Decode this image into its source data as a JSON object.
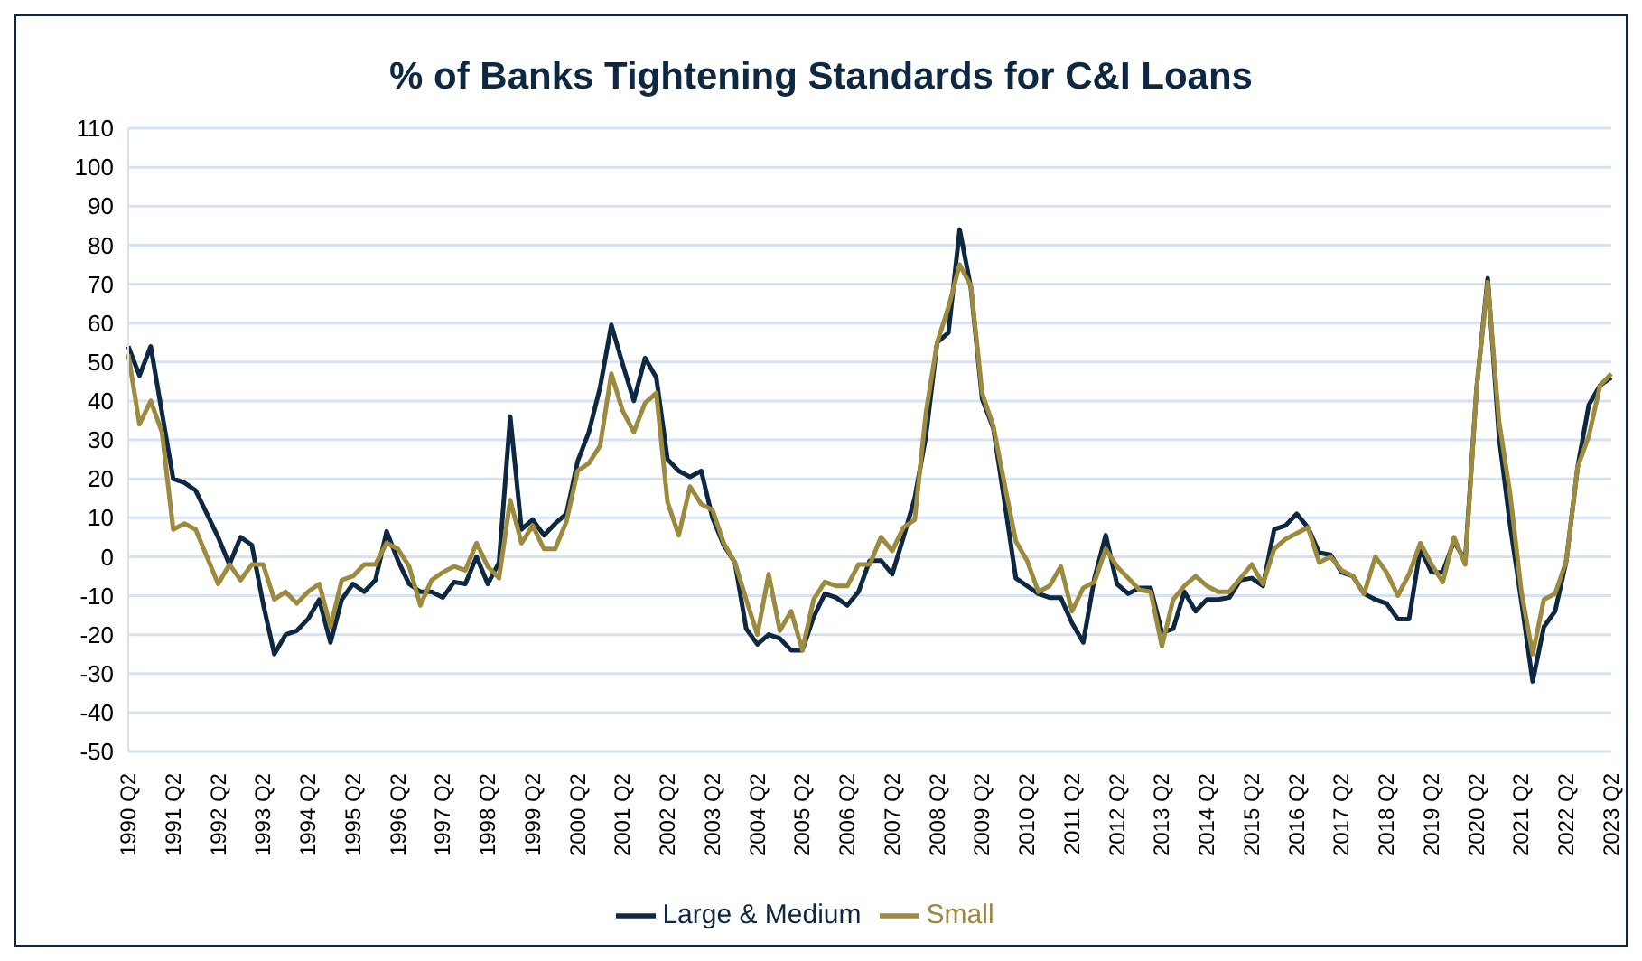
{
  "chart_data": {
    "type": "line",
    "title": "% of Banks Tightening Standards for C&I Loans",
    "categories": [
      "1990 Q2",
      null,
      null,
      null,
      "1991 Q2",
      null,
      null,
      null,
      "1992 Q2",
      null,
      null,
      null,
      "1993 Q2",
      null,
      null,
      null,
      "1994 Q2",
      null,
      null,
      null,
      "1995 Q2",
      null,
      null,
      null,
      "1996 Q2",
      null,
      null,
      null,
      "1997 Q2",
      null,
      null,
      null,
      "1998 Q2",
      null,
      null,
      null,
      "1999 Q2",
      null,
      null,
      null,
      "2000 Q2",
      null,
      null,
      null,
      "2001 Q2",
      null,
      null,
      null,
      "2002 Q2",
      null,
      null,
      null,
      "2003 Q2",
      null,
      null,
      null,
      "2004 Q2",
      null,
      null,
      null,
      "2005 Q2",
      null,
      null,
      null,
      "2006 Q2",
      null,
      null,
      null,
      "2007 Q2",
      null,
      null,
      null,
      "2008 Q2",
      null,
      null,
      null,
      "2009 Q2",
      null,
      null,
      null,
      "2010 Q2",
      null,
      null,
      null,
      "2011 Q2",
      null,
      null,
      null,
      "2012 Q2",
      null,
      null,
      null,
      "2013 Q2",
      null,
      null,
      null,
      "2014 Q2",
      null,
      null,
      null,
      "2015 Q2",
      null,
      null,
      null,
      "2016 Q2",
      null,
      null,
      null,
      "2017 Q2",
      null,
      null,
      null,
      "2018 Q2",
      null,
      null,
      null,
      "2019 Q2",
      null,
      null,
      null,
      "2020 Q2",
      null,
      null,
      null,
      "2021 Q2",
      null,
      null,
      null,
      "2022 Q2",
      null,
      null,
      null,
      "2023 Q2"
    ],
    "series": [
      {
        "name": "Large & Medium",
        "color": "#0e2841",
        "values": [
          54,
          46.5,
          54,
          37,
          20,
          19,
          17,
          11,
          5,
          -2,
          5,
          3,
          -12,
          -25,
          -20,
          -19,
          -16,
          -11,
          -22,
          -11,
          -7,
          -9,
          -6,
          6.5,
          -1,
          -7,
          -9,
          -9,
          -10.5,
          -6.5,
          -7,
          0,
          -7,
          -1.5,
          36,
          7,
          9.5,
          5.5,
          8.5,
          11,
          24.5,
          32,
          43.5,
          59.5,
          49.5,
          40,
          51,
          46,
          25,
          22,
          20.5,
          22,
          10,
          3,
          -1.5,
          -18.5,
          -22.5,
          -20,
          -21,
          -24,
          -24,
          -15.5,
          -9.5,
          -10.5,
          -12.5,
          -9,
          -1,
          -1,
          -4.5,
          5,
          15,
          31,
          55,
          57.5,
          84,
          69,
          40.5,
          33,
          14,
          -5.5,
          -7.5,
          -9.5,
          -10.5,
          -10.5,
          -17,
          -22,
          -5.5,
          5.5,
          -7,
          -9.5,
          -8,
          -8,
          -19.5,
          -18.5,
          -9,
          -14,
          -11,
          -11,
          -10.5,
          -6,
          -5.5,
          -7.5,
          7,
          8,
          11,
          7.5,
          1,
          0.5,
          -4,
          -5,
          -9.5,
          -11,
          -12,
          -16,
          -16,
          2,
          -4,
          -4,
          4,
          -1,
          43,
          71.5,
          31,
          8,
          -11.5,
          -32,
          -18,
          -14,
          -1,
          23,
          39,
          44,
          46
        ]
      },
      {
        "name": "Small",
        "color": "#9c8a3e",
        "values": [
          52,
          34,
          40,
          32,
          7,
          8.5,
          7,
          0,
          -7,
          -2,
          -6,
          -2,
          -2,
          -11,
          -9,
          -12,
          -9,
          -7,
          -18,
          -6,
          -5,
          -2,
          -2,
          3.5,
          2,
          -2.5,
          -12.5,
          -6,
          -4,
          -2.5,
          -3.5,
          3.5,
          -2.5,
          -5.5,
          14.5,
          3.5,
          8,
          2,
          2,
          9,
          22,
          24,
          28.5,
          47,
          37.5,
          32,
          39.5,
          42,
          14,
          5.5,
          18,
          13.5,
          12,
          3.5,
          -1.5,
          -11,
          -20,
          -4.5,
          -19,
          -14,
          -24,
          -11,
          -6.5,
          -7.5,
          -7.5,
          -2,
          -2,
          5,
          1.5,
          7.5,
          9.5,
          37,
          55,
          64,
          75,
          69.5,
          42,
          33.5,
          18.5,
          4,
          -1,
          -9,
          -7.5,
          -2.5,
          -14,
          -8,
          -6.5,
          2,
          -2.5,
          -5.5,
          -8.5,
          -9,
          -23,
          -11,
          -7.5,
          -5,
          -7.5,
          -9,
          -9,
          -5.5,
          -2,
          -7,
          2,
          4.5,
          6,
          7.5,
          -1.5,
          0,
          -3.5,
          -5,
          -9.5,
          0,
          -4,
          -10,
          -4.5,
          3.5,
          -2,
          -6.5,
          5,
          -2,
          43,
          70.5,
          35,
          16,
          -9,
          -25,
          -11,
          -9.5,
          -1,
          23,
          31,
          44,
          47
        ]
      }
    ],
    "ylim": [
      -50,
      110
    ],
    "yticks": [
      -50,
      -40,
      -30,
      -20,
      -10,
      0,
      10,
      20,
      30,
      40,
      50,
      60,
      70,
      80,
      90,
      100,
      110
    ],
    "grid": "y",
    "legend": "bottom",
    "marker": "none",
    "line_style": "solid"
  }
}
